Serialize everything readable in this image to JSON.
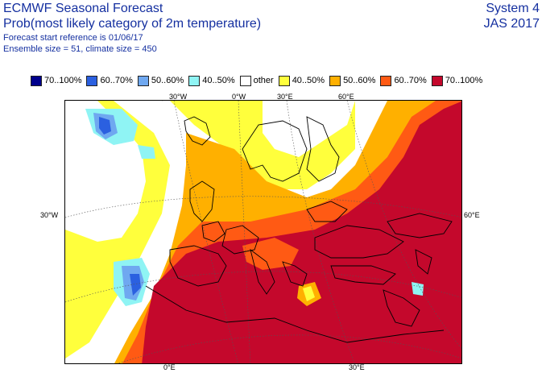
{
  "header": {
    "title": "ECMWF Seasonal Forecast",
    "subtitle": "Prob(most likely category of 2m temperature)",
    "forecast_ref": "Forecast start reference is 01/06/17",
    "ensemble": "Ensemble size = 51, climate size = 450",
    "system": "System 4",
    "season": "JAS 2017"
  },
  "legend": [
    {
      "label": "70..100%",
      "color": "#00008c"
    },
    {
      "label": "60..70%",
      "color": "#2b60e0"
    },
    {
      "label": "50..60%",
      "color": "#6fa8f0"
    },
    {
      "label": "40..50%",
      "color": "#8ff4f4"
    },
    {
      "label": "other",
      "color": "#ffffff"
    },
    {
      "label": "40..50%",
      "color": "#ffff3c"
    },
    {
      "label": "50..60%",
      "color": "#ffb000"
    },
    {
      "label": "60..70%",
      "color": "#ff5a14"
    },
    {
      "label": "70..100%",
      "color": "#c4082c"
    }
  ],
  "coords": {
    "top_30w": "30°W",
    "top_0": "0°W",
    "top_30e": "30°E",
    "top_60e": "60°E",
    "left_30w": "30°W",
    "right_60e": "60°E",
    "bottom_0": "0°E",
    "bottom_30e": "30°E"
  },
  "colors": {
    "warm_70": "#c4082c",
    "warm_60": "#ff5a14",
    "warm_50": "#ffb000",
    "warm_40": "#ffff3c",
    "cold_70": "#00008c",
    "cold_60": "#2b60e0",
    "cold_50": "#6fa8f0",
    "cold_40": "#8ff4f4",
    "other": "#ffffff"
  }
}
